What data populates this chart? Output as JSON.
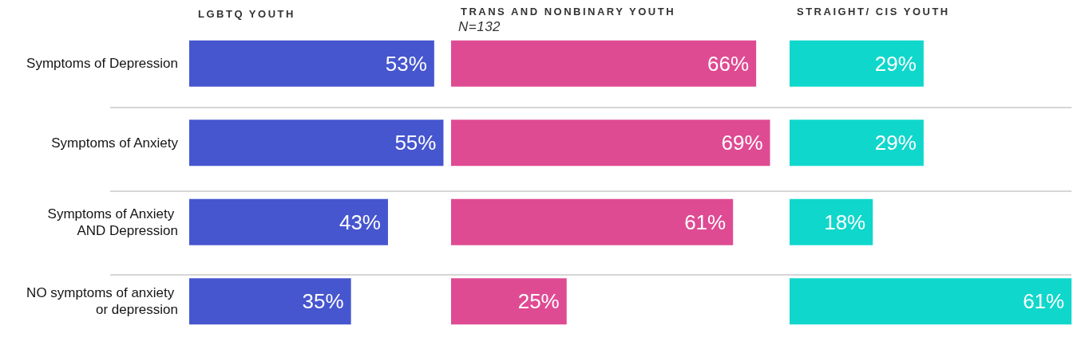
{
  "chart_data": [
    {
      "type": "bar",
      "orientation": "horizontal",
      "title": "LGBTQ YOUTH",
      "categories": [
        "Symptoms of Depression",
        "Symptoms of Anxiety",
        "Symptoms of Anxiety AND Depression",
        "NO symptoms of anxiety or depression"
      ],
      "values": [
        53,
        55,
        43,
        35
      ],
      "value_labels": [
        "53%",
        "55%",
        "43%",
        "35%"
      ],
      "color": "#4656cf",
      "grid": "y",
      "tick_labels": "y"
    },
    {
      "type": "bar",
      "orientation": "horizontal",
      "title": "TRANS AND NONBINARY YOUTH",
      "subtitle": "N=132",
      "categories": [
        "Symptoms of Depression",
        "Symptoms of Anxiety",
        "Symptoms of Anxiety AND Depression",
        "NO symptoms of anxiety or depression"
      ],
      "values": [
        66,
        69,
        61,
        25
      ],
      "value_labels": [
        "66%",
        "69%",
        "61%",
        "25%"
      ],
      "color": "#df4b93",
      "grid": "y",
      "tick_labels": false
    },
    {
      "type": "bar",
      "orientation": "horizontal",
      "title": "STRAIGHT/ CIS YOUTH",
      "categories": [
        "Symptoms of Depression",
        "Symptoms of Anxiety",
        "Symptoms of Anxiety AND Depression",
        "NO symptoms of anxiety or depression"
      ],
      "values": [
        29,
        29,
        18,
        61
      ],
      "value_labels": [
        "29%",
        "29%",
        "18%",
        "61%"
      ],
      "color": "#10d7cc",
      "grid": "y",
      "tick_labels": false
    }
  ]
}
